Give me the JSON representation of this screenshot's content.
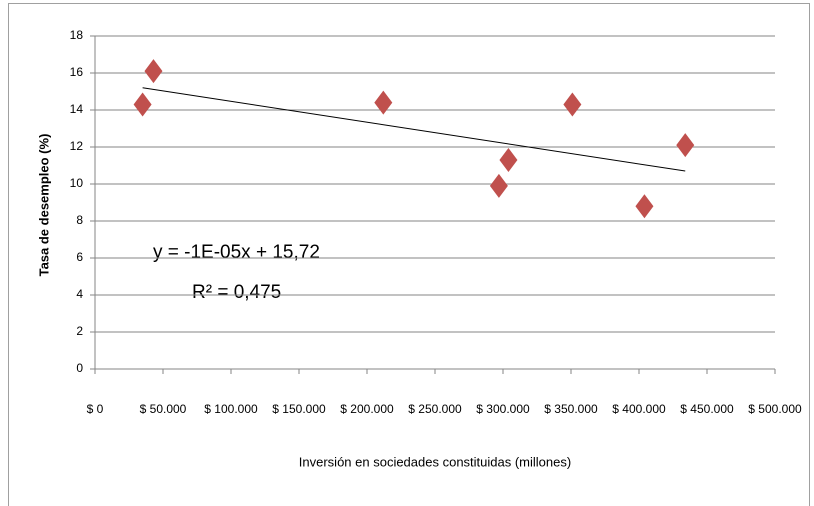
{
  "chart_data": {
    "type": "scatter",
    "xlabel": "Inversión en sociedades constituidas (millones)",
    "ylabel": "Tasa de desempleo (%)",
    "x": [
      35000,
      43000,
      212000,
      297000,
      304000,
      351000,
      404000,
      434000
    ],
    "values": [
      14.3,
      16.1,
      14.4,
      9.9,
      11.3,
      14.3,
      8.8,
      12.1
    ],
    "color": "#c0504d",
    "trendline": {
      "x": [
        35000,
        434000
      ],
      "values": [
        15.2,
        10.7
      ],
      "color": "#000000"
    },
    "annotations": [
      "y = -1E-05x + 15,72",
      "R² = 0,475"
    ],
    "xlim": [
      0,
      500000
    ],
    "xticks": [
      {
        "value": 0,
        "label": "$ 0"
      },
      {
        "value": 50000,
        "label": "$ 50.000"
      },
      {
        "value": 100000,
        "label": "$ 100.000"
      },
      {
        "value": 150000,
        "label": "$ 150.000"
      },
      {
        "value": 200000,
        "label": "$ 200.000"
      },
      {
        "value": 250000,
        "label": "$ 250.000"
      },
      {
        "value": 300000,
        "label": "$ 300.000"
      },
      {
        "value": 350000,
        "label": "$ 350.000"
      },
      {
        "value": 400000,
        "label": "$ 400.000"
      },
      {
        "value": 450000,
        "label": "$ 450.000"
      },
      {
        "value": 500000,
        "label": "$ 500.000"
      }
    ],
    "ylim": [
      0,
      18
    ],
    "yticks": [
      0,
      2,
      4,
      6,
      8,
      10,
      12,
      14,
      16,
      18
    ],
    "grid": true
  }
}
